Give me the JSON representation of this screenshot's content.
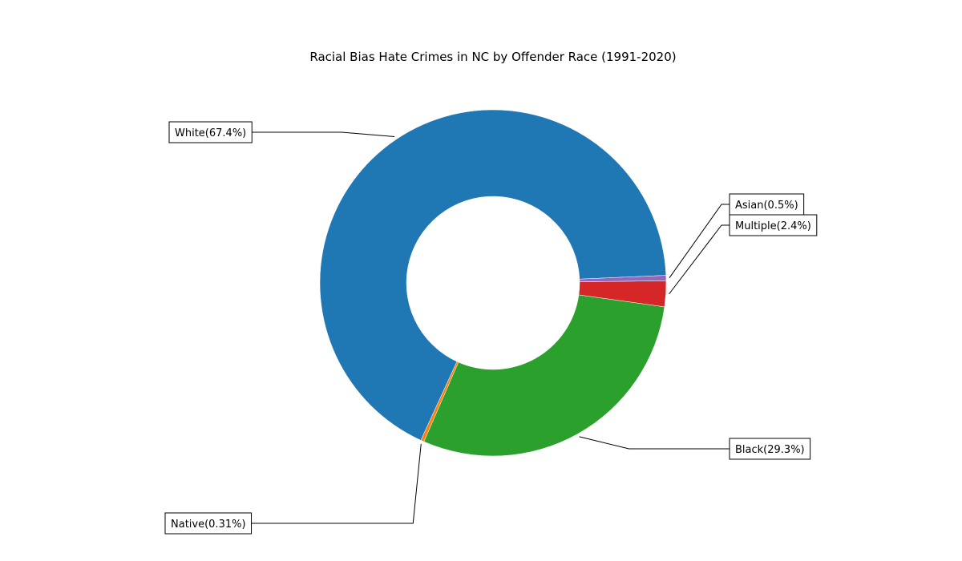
{
  "chart_data": {
    "type": "pie",
    "variant": "donut",
    "title": "Racial Bias Hate Crimes in NC by Offender Race (1991-2020)",
    "legend": "none",
    "slices": [
      {
        "name": "White",
        "value": 67.4,
        "label": "White(67.4%)",
        "color": "#1f77b4"
      },
      {
        "name": "Native",
        "value": 0.31,
        "label": "Native(0.31%)",
        "color": "#ff7f0e"
      },
      {
        "name": "Black",
        "value": 29.3,
        "label": "Black(29.3%)",
        "color": "#2ca02c"
      },
      {
        "name": "Multiple",
        "value": 2.4,
        "label": "Multiple(2.4%)",
        "color": "#d62728"
      },
      {
        "name": "Asian",
        "value": 0.5,
        "label": "Asian(0.5%)",
        "color": "#9467bd"
      }
    ]
  }
}
